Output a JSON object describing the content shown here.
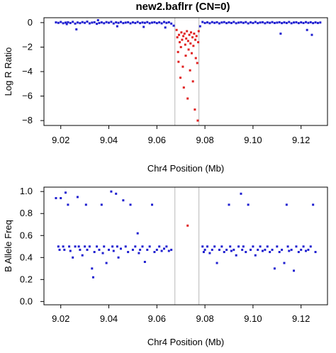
{
  "chart_data": [
    {
      "type": "scatter",
      "title": "new2.baflrr (CN=0)",
      "xlabel": "Chr4 Position (Mb)",
      "ylabel": "Log R Ratio",
      "xlim": [
        9.013,
        9.131
      ],
      "ylim": [
        -8.4,
        0.4
      ],
      "xticks": [
        "9.02",
        "9.04",
        "9.06",
        "9.08",
        "9.10",
        "9.12"
      ],
      "yticks": [
        "0",
        "−2",
        "−4",
        "−6",
        "−8"
      ],
      "vlines": [
        9.0675,
        9.0775
      ],
      "grid": false,
      "series": [
        {
          "color": "#1f1fd0",
          "points": [
            [
              9.018,
              0.02
            ],
            [
              9.019,
              -0.02
            ],
            [
              9.02,
              0.05
            ],
            [
              9.021,
              -0.05
            ],
            [
              9.022,
              0.0
            ],
            [
              9.0225,
              -0.12
            ],
            [
              9.023,
              0.03
            ],
            [
              9.024,
              -0.03
            ],
            [
              9.025,
              0.06
            ],
            [
              9.026,
              -0.08
            ],
            [
              9.0265,
              -0.55
            ],
            [
              9.027,
              0.01
            ],
            [
              9.028,
              -0.04
            ],
            [
              9.029,
              0.04
            ],
            [
              9.03,
              -0.02
            ],
            [
              9.031,
              0.08
            ],
            [
              9.032,
              -0.06
            ],
            [
              9.033,
              0.0
            ],
            [
              9.034,
              0.03
            ],
            [
              9.035,
              -0.1
            ],
            [
              9.0355,
              0.2
            ],
            [
              9.036,
              -0.03
            ],
            [
              9.037,
              0.02
            ],
            [
              9.038,
              -0.05
            ],
            [
              9.039,
              0.04
            ],
            [
              9.04,
              -0.01
            ],
            [
              9.041,
              0.06
            ],
            [
              9.042,
              -0.07
            ],
            [
              9.043,
              0.02
            ],
            [
              9.0435,
              -0.3
            ],
            [
              9.044,
              -0.02
            ],
            [
              9.045,
              0.05
            ],
            [
              9.046,
              -0.04
            ],
            [
              9.047,
              0.0
            ],
            [
              9.048,
              0.03
            ],
            [
              9.049,
              -0.06
            ],
            [
              9.05,
              0.02
            ],
            [
              9.051,
              -0.03
            ],
            [
              9.052,
              0.05
            ],
            [
              9.053,
              -0.04
            ],
            [
              9.054,
              0.01
            ],
            [
              9.0545,
              -0.35
            ],
            [
              9.055,
              -0.02
            ],
            [
              9.056,
              0.04
            ],
            [
              9.057,
              -0.05
            ],
            [
              9.058,
              0.0
            ],
            [
              9.059,
              0.03
            ],
            [
              9.06,
              -0.04
            ],
            [
              9.061,
              0.02
            ],
            [
              9.062,
              -0.06
            ],
            [
              9.063,
              0.05
            ],
            [
              9.0635,
              -0.4
            ],
            [
              9.064,
              -0.02
            ],
            [
              9.065,
              0.03
            ],
            [
              9.066,
              -0.08
            ],
            [
              9.067,
              -0.25
            ],
            [
              9.078,
              -0.3
            ],
            [
              9.079,
              0.05
            ],
            [
              9.08,
              -0.03
            ],
            [
              9.081,
              0.02
            ],
            [
              9.082,
              -0.05
            ],
            [
              9.083,
              0.04
            ],
            [
              9.084,
              -0.02
            ],
            [
              9.085,
              0.03
            ],
            [
              9.086,
              -0.06
            ],
            [
              9.087,
              0.01
            ],
            [
              9.088,
              0.04
            ],
            [
              9.089,
              -0.04
            ],
            [
              9.09,
              0.02
            ],
            [
              9.091,
              -0.03
            ],
            [
              9.092,
              0.05
            ],
            [
              9.093,
              -0.05
            ],
            [
              9.094,
              0.0
            ],
            [
              9.095,
              0.03
            ],
            [
              9.096,
              -0.02
            ],
            [
              9.097,
              0.04
            ],
            [
              9.098,
              -0.06
            ],
            [
              9.099,
              0.02
            ],
            [
              9.1,
              -0.03
            ],
            [
              9.101,
              0.05
            ],
            [
              9.102,
              -0.04
            ],
            [
              9.103,
              0.01
            ],
            [
              9.104,
              0.03
            ],
            [
              9.105,
              -0.05
            ],
            [
              9.106,
              0.02
            ],
            [
              9.107,
              -0.02
            ],
            [
              9.108,
              0.04
            ],
            [
              9.109,
              -0.03
            ],
            [
              9.11,
              0.0
            ],
            [
              9.111,
              0.03
            ],
            [
              9.1115,
              -0.9
            ],
            [
              9.112,
              -0.04
            ],
            [
              9.113,
              0.02
            ],
            [
              9.114,
              -0.03
            ],
            [
              9.115,
              0.05
            ],
            [
              9.116,
              -0.05
            ],
            [
              9.117,
              0.01
            ],
            [
              9.118,
              0.03
            ],
            [
              9.119,
              -0.04
            ],
            [
              9.12,
              0.02
            ],
            [
              9.121,
              -0.03
            ],
            [
              9.122,
              0.04
            ],
            [
              9.1225,
              -0.6
            ],
            [
              9.123,
              -0.02
            ],
            [
              9.124,
              0.03
            ],
            [
              9.1245,
              -1.0
            ],
            [
              9.125,
              -0.04
            ],
            [
              9.126,
              0.02
            ],
            [
              9.127,
              -0.03
            ],
            [
              9.128,
              0.01
            ]
          ]
        },
        {
          "color": "#e02020",
          "points": [
            [
              9.0682,
              -0.6
            ],
            [
              9.0685,
              -1.2
            ],
            [
              9.0688,
              -2.4
            ],
            [
              9.069,
              -3.2
            ],
            [
              9.0692,
              -1.0
            ],
            [
              9.0695,
              -1.6
            ],
            [
              9.0698,
              -4.5
            ],
            [
              9.07,
              -2.0
            ],
            [
              9.0702,
              -0.8
            ],
            [
              9.0705,
              -1.4
            ],
            [
              9.0708,
              -3.6
            ],
            [
              9.071,
              -1.1
            ],
            [
              9.0712,
              -5.3
            ],
            [
              9.0715,
              -0.9
            ],
            [
              9.0718,
              -1.8
            ],
            [
              9.072,
              -2.7
            ],
            [
              9.0722,
              -1.3
            ],
            [
              9.0725,
              -0.7
            ],
            [
              9.0728,
              -6.2
            ],
            [
              9.073,
              -1.5
            ],
            [
              9.0732,
              -2.2
            ],
            [
              9.0735,
              -1.0
            ],
            [
              9.0738,
              -3.9
            ],
            [
              9.074,
              -1.7
            ],
            [
              9.0742,
              -0.8
            ],
            [
              9.0745,
              -2.5
            ],
            [
              9.0748,
              -1.2
            ],
            [
              9.075,
              -4.8
            ],
            [
              9.0752,
              -1.9
            ],
            [
              9.0755,
              -0.9
            ],
            [
              9.0758,
              -7.1
            ],
            [
              9.076,
              -1.4
            ],
            [
              9.0762,
              -2.9
            ],
            [
              9.0765,
              -1.1
            ],
            [
              9.0768,
              -3.3
            ],
            [
              9.077,
              -8.0
            ],
            [
              9.0772,
              -1.6
            ],
            [
              9.0774,
              -0.7
            ]
          ]
        }
      ]
    },
    {
      "type": "scatter",
      "title": "",
      "xlabel": "Chr4 Position (Mb)",
      "ylabel": "B Allele Freq",
      "xlim": [
        9.013,
        9.131
      ],
      "ylim": [
        -0.03,
        1.04
      ],
      "xticks": [
        "9.02",
        "9.04",
        "9.06",
        "9.08",
        "9.10",
        "9.12"
      ],
      "yticks": [
        "0.0",
        "0.2",
        "0.4",
        "0.6",
        "0.8",
        "1.0"
      ],
      "vlines": [
        9.0675,
        9.0775
      ],
      "grid": false,
      "series": [
        {
          "color": "#1f1fd0",
          "points": [
            [
              9.018,
              0.94
            ],
            [
              9.019,
              0.5
            ],
            [
              9.0195,
              0.47
            ],
            [
              9.02,
              0.94
            ],
            [
              9.021,
              0.5
            ],
            [
              9.0215,
              0.47
            ],
            [
              9.022,
              0.99
            ],
            [
              9.023,
              0.88
            ],
            [
              9.0235,
              0.5
            ],
            [
              9.024,
              0.46
            ],
            [
              9.025,
              0.4
            ],
            [
              9.026,
              0.5
            ],
            [
              9.027,
              0.95
            ],
            [
              9.0275,
              0.5
            ],
            [
              9.028,
              0.47
            ],
            [
              9.029,
              0.42
            ],
            [
              9.03,
              0.5
            ],
            [
              9.0305,
              0.88
            ],
            [
              9.031,
              0.47
            ],
            [
              9.032,
              0.5
            ],
            [
              9.033,
              0.3
            ],
            [
              9.0335,
              0.22
            ],
            [
              9.034,
              0.45
            ],
            [
              9.035,
              0.5
            ],
            [
              9.036,
              0.47
            ],
            [
              9.037,
              0.88
            ],
            [
              9.0375,
              0.44
            ],
            [
              9.038,
              0.5
            ],
            [
              9.039,
              0.35
            ],
            [
              9.04,
              0.47
            ],
            [
              9.041,
              1.0
            ],
            [
              9.0415,
              0.5
            ],
            [
              9.042,
              0.46
            ],
            [
              9.043,
              0.98
            ],
            [
              9.0435,
              0.5
            ],
            [
              9.044,
              0.4
            ],
            [
              9.045,
              0.48
            ],
            [
              9.046,
              0.92
            ],
            [
              9.047,
              0.5
            ],
            [
              9.048,
              0.45
            ],
            [
              9.049,
              0.88
            ],
            [
              9.05,
              0.47
            ],
            [
              9.051,
              0.5
            ],
            [
              9.052,
              0.62
            ],
            [
              9.0525,
              0.44
            ],
            [
              9.053,
              0.47
            ],
            [
              9.054,
              0.5
            ],
            [
              9.055,
              0.36
            ],
            [
              9.056,
              0.47
            ],
            [
              9.057,
              0.5
            ],
            [
              9.058,
              0.88
            ],
            [
              9.059,
              0.45
            ],
            [
              9.06,
              0.47
            ],
            [
              9.061,
              0.5
            ],
            [
              9.062,
              0.46
            ],
            [
              9.063,
              0.48
            ],
            [
              9.064,
              0.5
            ],
            [
              9.065,
              0.46
            ],
            [
              9.066,
              0.47
            ],
            [
              9.079,
              0.5
            ],
            [
              9.0795,
              0.45
            ],
            [
              9.08,
              0.47
            ],
            [
              9.081,
              0.5
            ],
            [
              9.082,
              0.44
            ],
            [
              9.083,
              0.47
            ],
            [
              9.084,
              0.5
            ],
            [
              9.085,
              0.35
            ],
            [
              9.086,
              0.47
            ],
            [
              9.087,
              0.5
            ],
            [
              9.088,
              0.45
            ],
            [
              9.089,
              0.47
            ],
            [
              9.09,
              0.88
            ],
            [
              9.0905,
              0.5
            ],
            [
              9.091,
              0.46
            ],
            [
              9.092,
              0.47
            ],
            [
              9.093,
              0.42
            ],
            [
              9.094,
              0.5
            ],
            [
              9.095,
              0.98
            ],
            [
              9.0955,
              0.47
            ],
            [
              9.096,
              0.5
            ],
            [
              9.097,
              0.45
            ],
            [
              9.098,
              0.88
            ],
            [
              9.099,
              0.47
            ],
            [
              9.1,
              0.5
            ],
            [
              9.101,
              0.42
            ],
            [
              9.102,
              0.47
            ],
            [
              9.103,
              0.5
            ],
            [
              9.104,
              0.46
            ],
            [
              9.105,
              0.47
            ],
            [
              9.106,
              0.5
            ],
            [
              9.107,
              0.45
            ],
            [
              9.108,
              0.47
            ],
            [
              9.109,
              0.3
            ],
            [
              9.11,
              0.5
            ],
            [
              9.111,
              0.45
            ],
            [
              9.112,
              0.47
            ],
            [
              9.113,
              0.35
            ],
            [
              9.114,
              0.88
            ],
            [
              9.1145,
              0.5
            ],
            [
              9.115,
              0.46
            ],
            [
              9.116,
              0.47
            ],
            [
              9.117,
              0.28
            ],
            [
              9.118,
              0.5
            ],
            [
              9.119,
              0.45
            ],
            [
              9.12,
              0.47
            ],
            [
              9.121,
              0.5
            ],
            [
              9.122,
              0.46
            ],
            [
              9.123,
              0.47
            ],
            [
              9.124,
              0.5
            ],
            [
              9.125,
              0.88
            ],
            [
              9.126,
              0.45
            ]
          ]
        },
        {
          "color": "#e02020",
          "points": [
            [
              9.0728,
              0.69
            ]
          ]
        }
      ]
    }
  ]
}
